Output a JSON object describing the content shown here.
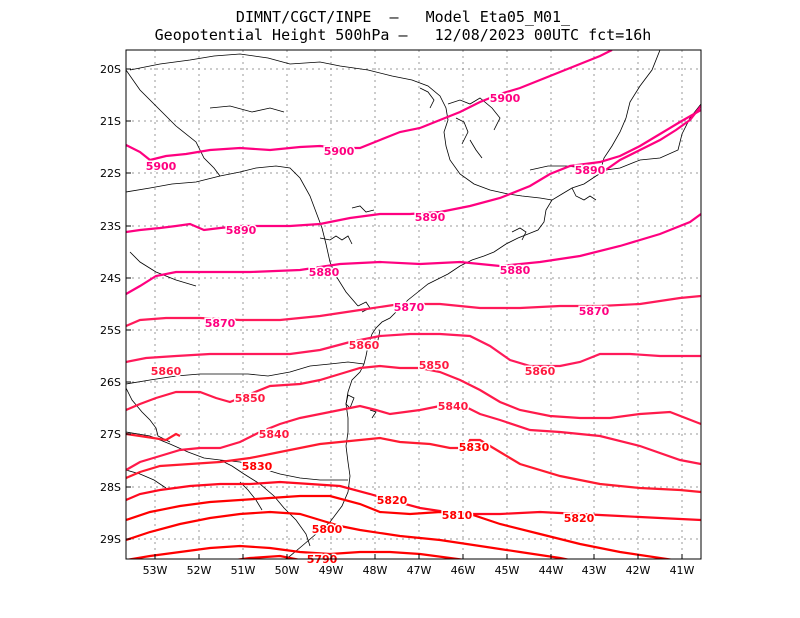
{
  "title_line1": "DIMNT/CGCT/INPE  –   Model Eta05_M01_",
  "title_line2": "Geopotential Height 500hPa –   12/08/2023 00UTC fct=16h",
  "colors": {
    "high": "#ff0080",
    "mid": "#ff1a40",
    "low": "#ff0000",
    "coast": "#000000",
    "grid": "#9a9a9a"
  },
  "lat_labels": [
    "20S",
    "21S",
    "22S",
    "23S",
    "24S",
    "25S",
    "26S",
    "27S",
    "28S",
    "29S"
  ],
  "lon_labels": [
    "53W",
    "52W",
    "51W",
    "50W",
    "49W",
    "48W",
    "47W",
    "46W",
    "45W",
    "44W",
    "43W",
    "42W",
    "41W"
  ],
  "contours": [
    {
      "value": "5900",
      "labels": [
        {
          "text": "5900"
        },
        {
          "text": "5900"
        },
        {
          "text": "5900"
        }
      ]
    },
    {
      "value": "5890",
      "labels": [
        {
          "text": "5890"
        },
        {
          "text": "5890"
        },
        {
          "text": "5890"
        }
      ]
    },
    {
      "value": "5880",
      "labels": [
        {
          "text": "5880"
        },
        {
          "text": "5880"
        }
      ]
    },
    {
      "value": "5870",
      "labels": [
        {
          "text": "5870"
        },
        {
          "text": "5870"
        },
        {
          "text": "5870"
        }
      ]
    },
    {
      "value": "5860",
      "labels": [
        {
          "text": "5860"
        },
        {
          "text": "5860"
        },
        {
          "text": "5860"
        }
      ]
    },
    {
      "value": "5850",
      "labels": [
        {
          "text": "5850"
        },
        {
          "text": "5850"
        }
      ]
    },
    {
      "value": "5840",
      "labels": [
        {
          "text": "5840"
        },
        {
          "text": "5840"
        }
      ]
    },
    {
      "value": "5830",
      "labels": [
        {
          "text": "5830"
        },
        {
          "text": "5830"
        }
      ]
    },
    {
      "value": "5820",
      "labels": [
        {
          "text": "5820"
        },
        {
          "text": "5820"
        }
      ]
    },
    {
      "value": "5810",
      "labels": [
        {
          "text": "5810"
        }
      ]
    },
    {
      "value": "5800",
      "labels": [
        {
          "text": "5800"
        }
      ]
    },
    {
      "value": "5790",
      "labels": [
        {
          "text": "5790"
        }
      ]
    }
  ]
}
